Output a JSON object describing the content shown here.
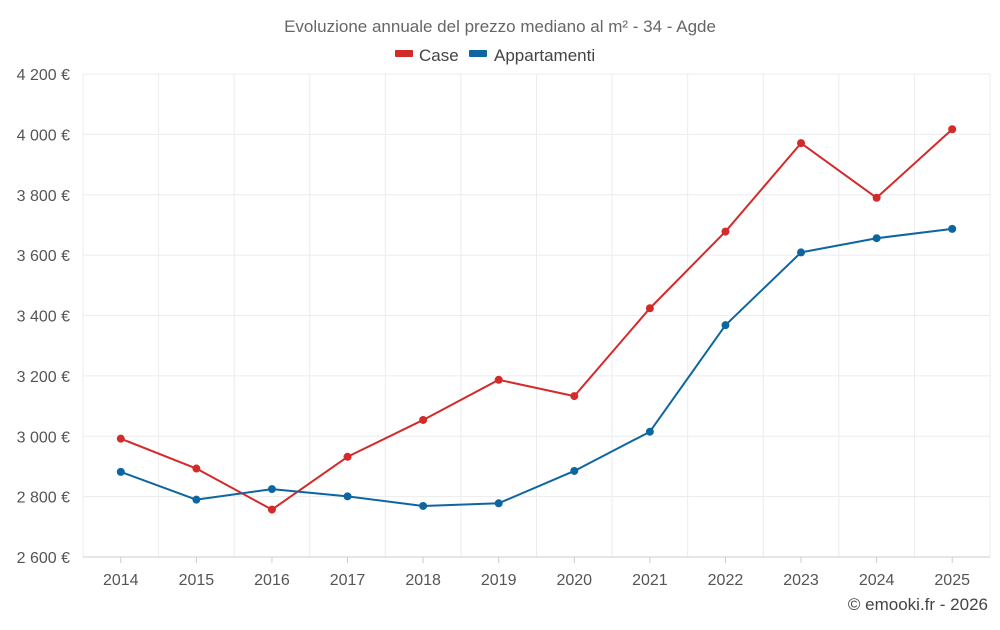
{
  "chart_data": {
    "type": "line",
    "title": "Evoluzione annuale del prezzo mediano al m² - 34 - Agde",
    "xlabel": "",
    "ylabel": "",
    "categories": [
      "2014",
      "2015",
      "2016",
      "2017",
      "2018",
      "2019",
      "2020",
      "2021",
      "2022",
      "2023",
      "2024",
      "2025"
    ],
    "y_ticks": [
      2600,
      2800,
      3000,
      3200,
      3400,
      3600,
      3800,
      4000,
      4200
    ],
    "y_tick_labels": [
      "2 600 €",
      "2 800 €",
      "3 000 €",
      "3 200 €",
      "3 400 €",
      "3 600 €",
      "3 800 €",
      "4 000 €",
      "4 200 €"
    ],
    "ylim": [
      2600,
      4200
    ],
    "grid": true,
    "legend_position": "top-center",
    "series": [
      {
        "name": "Case",
        "color": "#d32a2a",
        "values": [
          2992,
          2893,
          2757,
          2932,
          3054,
          3187,
          3133,
          3424,
          3678,
          3971,
          3790,
          4017
        ]
      },
      {
        "name": "Appartamenti",
        "color": "#0e66a0",
        "values": [
          2882,
          2790,
          2825,
          2801,
          2769,
          2778,
          2885,
          3015,
          3368,
          3609,
          3656,
          3687
        ]
      }
    ],
    "credit": "© emooki.fr - 2026"
  }
}
